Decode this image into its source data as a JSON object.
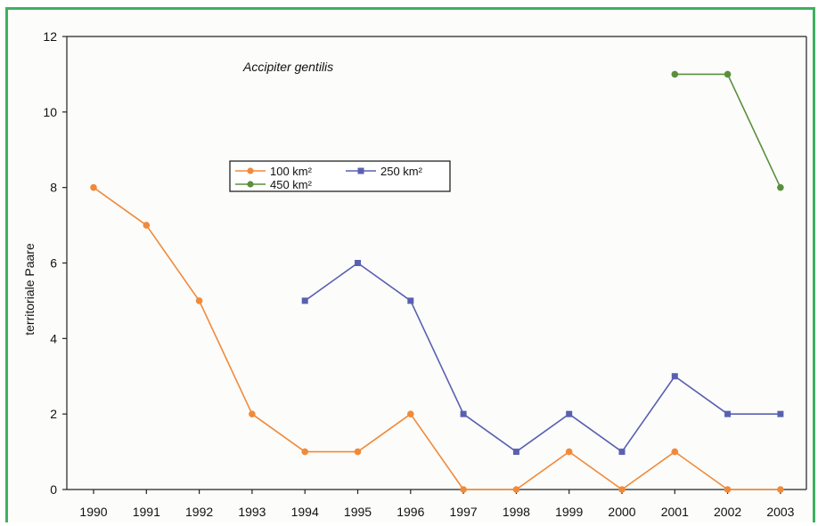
{
  "chart_data": {
    "type": "line",
    "title": "Accipiter  gentilis",
    "xlabel": "",
    "ylabel": "territoriale  Paare",
    "x": [
      "1990",
      "1991",
      "1992",
      "1993",
      "1994",
      "1995",
      "1996",
      "1997",
      "1998",
      "1999",
      "2000",
      "2001",
      "2002",
      "2003"
    ],
    "ylim": [
      0,
      12
    ],
    "yticks": [
      "0",
      "2",
      "4",
      "6",
      "8",
      "10",
      "12"
    ],
    "grid": false,
    "legend_position": "upper-left",
    "series": [
      {
        "name": "100  km²",
        "color": "#f08a3a",
        "marker": "circle",
        "values": [
          8,
          7,
          5,
          2,
          1,
          1,
          2,
          0,
          0,
          1,
          0,
          1,
          0,
          0
        ]
      },
      {
        "name": "250  km²",
        "color": "#5a60b0",
        "marker": "square",
        "values": [
          null,
          null,
          null,
          null,
          5,
          6,
          5,
          2,
          1,
          2,
          1,
          3,
          2,
          2
        ]
      },
      {
        "name": "450  km²",
        "color": "#5a8f3c",
        "marker": "circle",
        "values": [
          null,
          null,
          null,
          null,
          null,
          null,
          null,
          null,
          null,
          null,
          null,
          11,
          11,
          8
        ]
      }
    ]
  }
}
